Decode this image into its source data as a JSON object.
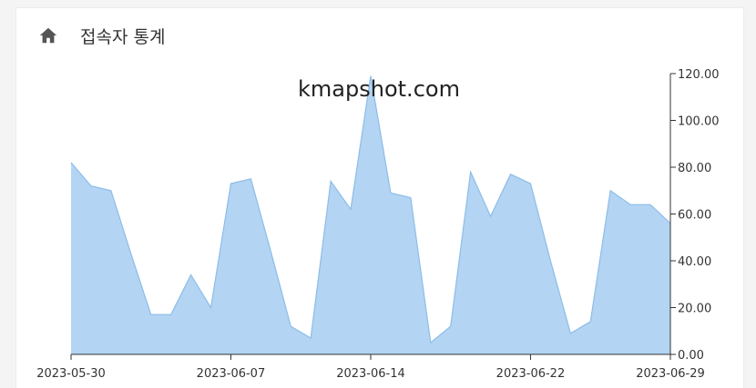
{
  "header": {
    "icon": "home-icon",
    "title": "접속자 통계"
  },
  "watermark": "kmapshot.com",
  "chart_data": {
    "type": "area",
    "title": "",
    "xlabel": "",
    "ylabel": "",
    "x": [
      "2023-05-30",
      "2023-05-31",
      "2023-06-01",
      "2023-06-02",
      "2023-06-03",
      "2023-06-04",
      "2023-06-05",
      "2023-06-06",
      "2023-06-07",
      "2023-06-08",
      "2023-06-09",
      "2023-06-10",
      "2023-06-11",
      "2023-06-12",
      "2023-06-13",
      "2023-06-14",
      "2023-06-15",
      "2023-06-16",
      "2023-06-17",
      "2023-06-18",
      "2023-06-19",
      "2023-06-20",
      "2023-06-21",
      "2023-06-22",
      "2023-06-23",
      "2023-06-24",
      "2023-06-25",
      "2023-06-26",
      "2023-06-27",
      "2023-06-28",
      "2023-06-29"
    ],
    "values": [
      82,
      72,
      70,
      43,
      17,
      17,
      34,
      20,
      73,
      75,
      44,
      12,
      7,
      74,
      62,
      119,
      69,
      67,
      5,
      12,
      78,
      59,
      77,
      73,
      40,
      9,
      14,
      70,
      64,
      64,
      56
    ],
    "ylim": [
      0,
      120
    ],
    "yticks": [
      "0.00",
      "20.00",
      "40.00",
      "60.00",
      "80.00",
      "100.00",
      "120.00"
    ],
    "xtick_labels": [
      "2023-05-30",
      "2023-06-07",
      "2023-06-14",
      "2023-06-22",
      "2023-06-29"
    ],
    "xtick_index": [
      0,
      8,
      15,
      23,
      30
    ],
    "y_axis_position": "right",
    "grid": false,
    "fill_color": "#b3d4f3",
    "line_color": "#8dbde9",
    "axis_color": "#333333"
  }
}
